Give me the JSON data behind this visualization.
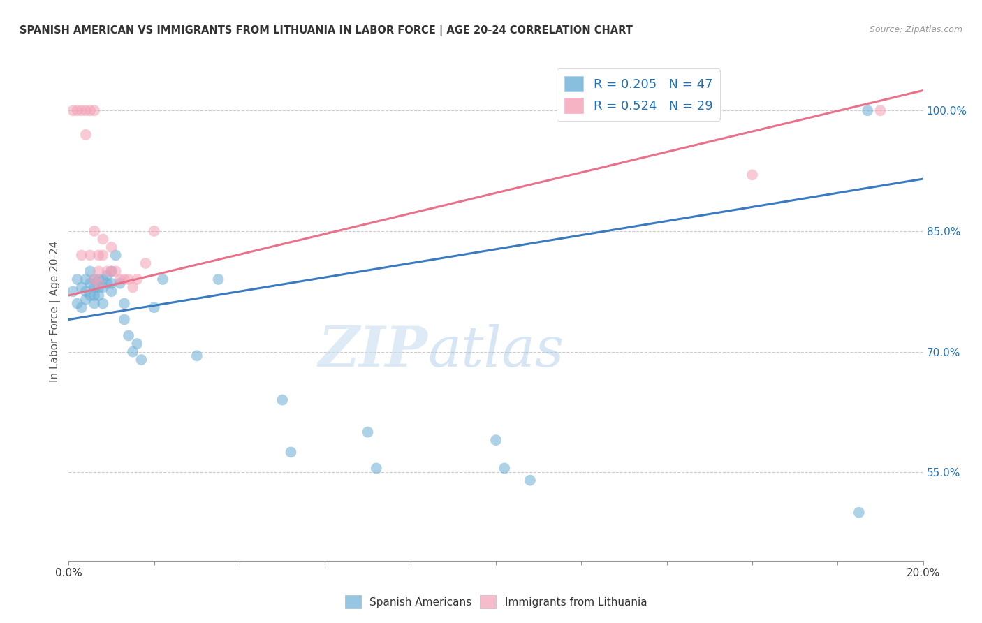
{
  "title": "SPANISH AMERICAN VS IMMIGRANTS FROM LITHUANIA IN LABOR FORCE | AGE 20-24 CORRELATION CHART",
  "source": "Source: ZipAtlas.com",
  "ylabel": "In Labor Force | Age 20-24",
  "xlim": [
    0.0,
    0.2
  ],
  "ylim": [
    0.44,
    1.06
  ],
  "yticks_right": [
    0.55,
    0.7,
    0.85,
    1.0
  ],
  "ytick_right_labels": [
    "55.0%",
    "70.0%",
    "85.0%",
    "100.0%"
  ],
  "blue_R": 0.205,
  "blue_N": 47,
  "pink_R": 0.524,
  "pink_N": 29,
  "blue_color": "#6baed6",
  "pink_color": "#f4a0b5",
  "blue_line_color": "#3a7abf",
  "pink_line_color": "#e8728a",
  "legend_text_color": "#2171b5",
  "watermark_zip": "ZIP",
  "watermark_atlas": "atlas",
  "blue_scatter_x": [
    0.001,
    0.002,
    0.002,
    0.003,
    0.003,
    0.004,
    0.004,
    0.004,
    0.005,
    0.005,
    0.005,
    0.006,
    0.006,
    0.006,
    0.006,
    0.007,
    0.007,
    0.007,
    0.008,
    0.008,
    0.008,
    0.009,
    0.009,
    0.01,
    0.01,
    0.01,
    0.011,
    0.012,
    0.013,
    0.013,
    0.014,
    0.015,
    0.016,
    0.017,
    0.02,
    0.022,
    0.03,
    0.035,
    0.05,
    0.052,
    0.07,
    0.072,
    0.1,
    0.102,
    0.108,
    0.185,
    0.187
  ],
  "blue_scatter_y": [
    0.775,
    0.79,
    0.76,
    0.78,
    0.755,
    0.79,
    0.775,
    0.765,
    0.8,
    0.785,
    0.77,
    0.79,
    0.78,
    0.77,
    0.76,
    0.79,
    0.78,
    0.77,
    0.79,
    0.78,
    0.76,
    0.795,
    0.785,
    0.8,
    0.785,
    0.775,
    0.82,
    0.785,
    0.76,
    0.74,
    0.72,
    0.7,
    0.71,
    0.69,
    0.755,
    0.79,
    0.695,
    0.79,
    0.64,
    0.575,
    0.6,
    0.555,
    0.59,
    0.555,
    0.54,
    0.5,
    1.0
  ],
  "pink_scatter_x": [
    0.001,
    0.002,
    0.003,
    0.003,
    0.004,
    0.004,
    0.005,
    0.005,
    0.006,
    0.006,
    0.006,
    0.007,
    0.007,
    0.007,
    0.008,
    0.008,
    0.009,
    0.01,
    0.01,
    0.011,
    0.012,
    0.013,
    0.014,
    0.015,
    0.016,
    0.018,
    0.02,
    0.16,
    0.19
  ],
  "pink_scatter_y": [
    1.0,
    1.0,
    1.0,
    0.82,
    1.0,
    0.97,
    1.0,
    0.82,
    1.0,
    0.85,
    0.79,
    0.82,
    0.8,
    0.785,
    0.84,
    0.82,
    0.8,
    0.83,
    0.8,
    0.8,
    0.79,
    0.79,
    0.79,
    0.78,
    0.79,
    0.81,
    0.85,
    0.92,
    1.0
  ],
  "blue_trend_x": [
    0.0,
    0.2
  ],
  "blue_trend_y": [
    0.74,
    0.915
  ],
  "pink_trend_x": [
    0.0,
    0.2
  ],
  "pink_trend_y": [
    0.77,
    1.025
  ],
  "background_color": "#ffffff",
  "grid_color": "#cccccc"
}
